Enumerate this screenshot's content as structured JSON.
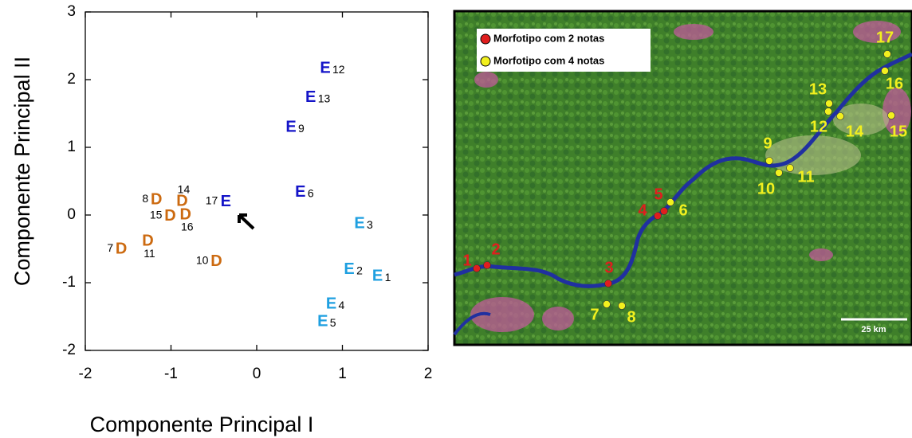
{
  "chart_data": {
    "type": "scatter",
    "xlabel": "Componente Principal I",
    "ylabel": "Componente Principal II",
    "xlim": [
      -2,
      2
    ],
    "ylim": [
      -2,
      3
    ],
    "xticks": [
      -2,
      -1,
      0,
      1,
      2
    ],
    "yticks": [
      -2,
      -1,
      0,
      1,
      2,
      3
    ],
    "points": [
      {
        "x": 0.8,
        "y": 2.16,
        "marker": "E",
        "label": "12",
        "color": "#1414c8",
        "label_side": "right"
      },
      {
        "x": 0.63,
        "y": 1.73,
        "marker": "E",
        "label": "13",
        "color": "#1414c8",
        "label_side": "right"
      },
      {
        "x": 0.4,
        "y": 1.29,
        "marker": "E",
        "label": "9",
        "color": "#1414c8",
        "label_side": "right"
      },
      {
        "x": 0.51,
        "y": 0.33,
        "marker": "E",
        "label": "6",
        "color": "#1414c8",
        "label_side": "right"
      },
      {
        "x": -0.36,
        "y": 0.19,
        "marker": "E",
        "label": "17",
        "color": "#1414c8",
        "label_side": "left"
      },
      {
        "x": 1.2,
        "y": -0.13,
        "marker": "E",
        "label": "3",
        "color": "#1e9fe0",
        "label_side": "right"
      },
      {
        "x": 1.08,
        "y": -0.81,
        "marker": "E",
        "label": "2",
        "color": "#1e9fe0",
        "label_side": "right"
      },
      {
        "x": 1.41,
        "y": -0.91,
        "marker": "E",
        "label": "1",
        "color": "#1e9fe0",
        "label_side": "right"
      },
      {
        "x": 0.87,
        "y": -1.32,
        "marker": "E",
        "label": "4",
        "color": "#1e9fe0",
        "label_side": "right"
      },
      {
        "x": 0.77,
        "y": -1.58,
        "marker": "E",
        "label": "5",
        "color": "#1e9fe0",
        "label_side": "right"
      },
      {
        "x": -1.17,
        "y": 0.22,
        "marker": "D",
        "label": "8",
        "color": "#cc6a10",
        "label_side": "left"
      },
      {
        "x": -0.87,
        "y": 0.2,
        "marker": "D",
        "label": "14",
        "color": "#cc6a10",
        "label_side": "above"
      },
      {
        "x": -1.01,
        "y": -0.02,
        "marker": "D",
        "label": "15",
        "color": "#cc6a10",
        "label_side": "left"
      },
      {
        "x": -0.83,
        "y": 0.0,
        "marker": "D",
        "label": "16",
        "color": "#cc6a10",
        "label_side": "below"
      },
      {
        "x": -1.58,
        "y": -0.51,
        "marker": "D",
        "label": "7",
        "color": "#cc6a10",
        "label_side": "left"
      },
      {
        "x": -1.27,
        "y": -0.39,
        "marker": "D",
        "label": "11",
        "color": "#cc6a10",
        "label_side": "below"
      },
      {
        "x": -0.47,
        "y": -0.69,
        "marker": "D",
        "label": "10",
        "color": "#cc6a10",
        "label_side": "left"
      }
    ]
  },
  "map": {
    "legend": [
      {
        "label": "Morfotipo com 2 notas",
        "color": "#e01e1e"
      },
      {
        "label": "Morfotipo com 4 notas",
        "color": "#f2f01e"
      }
    ],
    "points": [
      {
        "label": "1",
        "group": 0
      },
      {
        "label": "2",
        "group": 0
      },
      {
        "label": "3",
        "group": 0
      },
      {
        "label": "4",
        "group": 0
      },
      {
        "label": "5",
        "group": 0
      },
      {
        "label": "6",
        "group": 1
      },
      {
        "label": "7",
        "group": 1
      },
      {
        "label": "8",
        "group": 1
      },
      {
        "label": "9",
        "group": 1
      },
      {
        "label": "10",
        "group": 1
      },
      {
        "label": "11",
        "group": 1
      },
      {
        "label": "12",
        "group": 1
      },
      {
        "label": "13",
        "group": 1
      },
      {
        "label": "14",
        "group": 1
      },
      {
        "label": "15",
        "group": 1
      },
      {
        "label": "16",
        "group": 1
      },
      {
        "label": "17",
        "group": 1
      }
    ],
    "scale_label": "25 km"
  }
}
